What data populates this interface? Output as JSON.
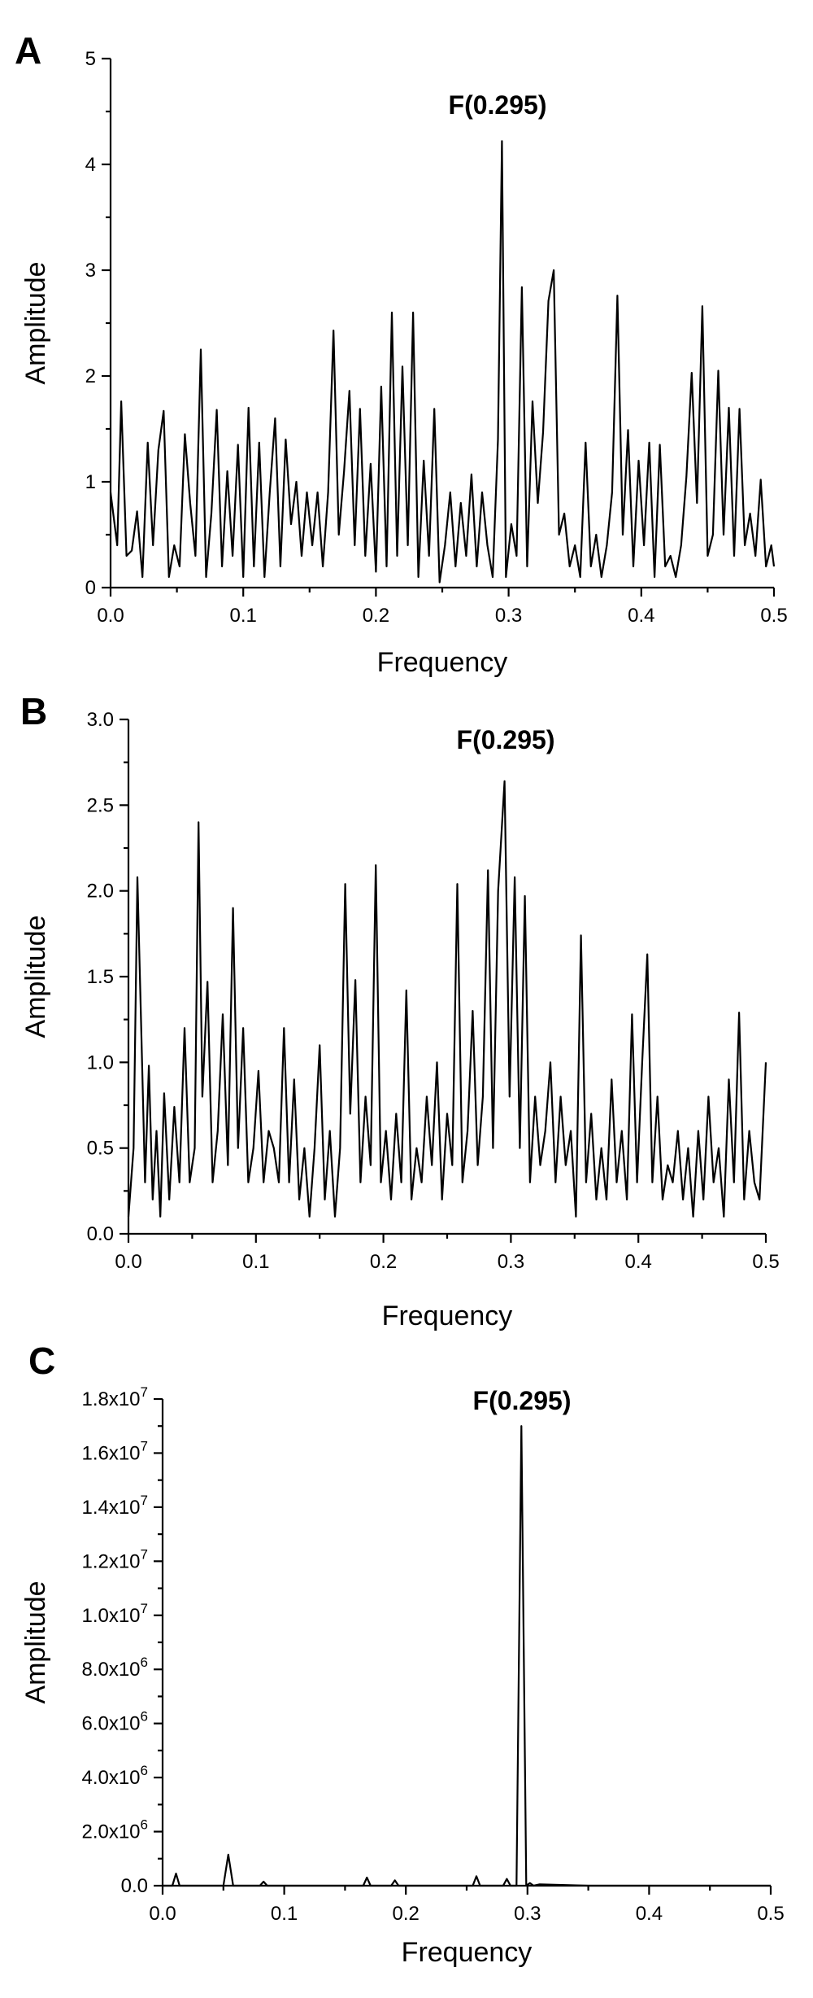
{
  "chart_data": [
    {
      "panel": "A",
      "type": "line",
      "annotation": "F(0.295)",
      "xlabel": "Frequency",
      "ylabel": "Amplitude",
      "xlim": [
        0,
        0.5
      ],
      "ylim": [
        0,
        5
      ],
      "xticks": [
        0.0,
        0.1,
        0.2,
        0.3,
        0.4,
        0.5
      ],
      "xtick_labels": [
        "0.0",
        "0.1",
        "0.2",
        "0.3",
        "0.4",
        "0.5"
      ],
      "yticks": [
        0,
        1,
        2,
        3,
        4,
        5
      ],
      "ytick_labels": [
        "0",
        "1",
        "2",
        "3",
        "4",
        "5"
      ],
      "grid": false,
      "x": [
        0.0,
        0.005,
        0.008,
        0.012,
        0.016,
        0.02,
        0.024,
        0.028,
        0.032,
        0.036,
        0.04,
        0.044,
        0.048,
        0.052,
        0.056,
        0.06,
        0.064,
        0.068,
        0.072,
        0.076,
        0.08,
        0.084,
        0.088,
        0.092,
        0.096,
        0.1,
        0.104,
        0.108,
        0.112,
        0.116,
        0.12,
        0.124,
        0.128,
        0.132,
        0.136,
        0.14,
        0.144,
        0.148,
        0.152,
        0.156,
        0.16,
        0.164,
        0.168,
        0.172,
        0.176,
        0.18,
        0.184,
        0.188,
        0.192,
        0.196,
        0.2,
        0.204,
        0.208,
        0.212,
        0.216,
        0.22,
        0.224,
        0.228,
        0.232,
        0.236,
        0.24,
        0.244,
        0.248,
        0.252,
        0.256,
        0.26,
        0.264,
        0.268,
        0.272,
        0.276,
        0.28,
        0.284,
        0.288,
        0.292,
        0.295,
        0.298,
        0.302,
        0.306,
        0.31,
        0.314,
        0.318,
        0.322,
        0.326,
        0.33,
        0.334,
        0.338,
        0.342,
        0.346,
        0.35,
        0.354,
        0.358,
        0.362,
        0.366,
        0.37,
        0.374,
        0.378,
        0.382,
        0.386,
        0.39,
        0.394,
        0.398,
        0.402,
        0.406,
        0.41,
        0.414,
        0.418,
        0.422,
        0.426,
        0.43,
        0.434,
        0.438,
        0.442,
        0.446,
        0.45,
        0.454,
        0.458,
        0.462,
        0.466,
        0.47,
        0.474,
        0.478,
        0.482,
        0.486,
        0.49,
        0.494,
        0.498,
        0.5
      ],
      "y": [
        0.9,
        0.4,
        1.76,
        0.3,
        0.35,
        0.72,
        0.1,
        1.37,
        0.4,
        1.3,
        1.67,
        0.1,
        0.4,
        0.2,
        1.45,
        0.8,
        0.3,
        2.25,
        0.1,
        0.7,
        1.68,
        0.2,
        1.1,
        0.3,
        1.35,
        0.1,
        1.7,
        0.2,
        1.37,
        0.1,
        0.9,
        1.6,
        0.2,
        1.4,
        0.6,
        1.0,
        0.3,
        0.9,
        0.4,
        0.9,
        0.2,
        0.9,
        2.43,
        0.5,
        1.1,
        1.86,
        0.4,
        1.69,
        0.3,
        1.17,
        0.15,
        1.9,
        0.2,
        2.6,
        0.3,
        2.09,
        0.4,
        2.6,
        0.1,
        1.2,
        0.3,
        1.69,
        0.05,
        0.4,
        0.9,
        0.2,
        0.8,
        0.3,
        1.07,
        0.2,
        0.9,
        0.4,
        0.1,
        1.4,
        4.22,
        0.1,
        0.6,
        0.3,
        2.84,
        0.2,
        1.76,
        0.8,
        1.47,
        2.71,
        3.0,
        0.5,
        0.7,
        0.2,
        0.4,
        0.1,
        1.37,
        0.2,
        0.5,
        0.1,
        0.4,
        0.9,
        2.76,
        0.5,
        1.49,
        0.2,
        1.2,
        0.4,
        1.37,
        0.1,
        1.35,
        0.2,
        0.3,
        0.1,
        0.4,
        1.05,
        2.03,
        0.8,
        2.66,
        0.3,
        0.5,
        2.05,
        0.5,
        1.7,
        0.3,
        1.69,
        0.4,
        0.7,
        0.3,
        1.02,
        0.2,
        0.4,
        0.2
      ]
    },
    {
      "panel": "B",
      "type": "line",
      "annotation": "F(0.295)",
      "xlabel": "Frequency",
      "ylabel": "Amplitude",
      "xlim": [
        0,
        0.5
      ],
      "ylim": [
        0,
        3
      ],
      "xticks": [
        0.0,
        0.1,
        0.2,
        0.3,
        0.4,
        0.5
      ],
      "xtick_labels": [
        "0.0",
        "0.1",
        "0.2",
        "0.3",
        "0.4",
        "0.5"
      ],
      "yticks": [
        0.0,
        0.5,
        1.0,
        1.5,
        2.0,
        2.5,
        3.0
      ],
      "ytick_labels": [
        "0.0",
        "0.5",
        "1.0",
        "1.5",
        "2.0",
        "2.5",
        "3.0"
      ],
      "grid": false,
      "x": [
        0.0,
        0.004,
        0.007,
        0.01,
        0.013,
        0.016,
        0.019,
        0.022,
        0.025,
        0.028,
        0.032,
        0.036,
        0.04,
        0.044,
        0.048,
        0.052,
        0.055,
        0.058,
        0.062,
        0.066,
        0.07,
        0.074,
        0.078,
        0.082,
        0.086,
        0.09,
        0.094,
        0.098,
        0.102,
        0.106,
        0.11,
        0.114,
        0.118,
        0.122,
        0.126,
        0.13,
        0.134,
        0.138,
        0.142,
        0.146,
        0.15,
        0.154,
        0.158,
        0.162,
        0.166,
        0.17,
        0.174,
        0.178,
        0.182,
        0.186,
        0.19,
        0.194,
        0.198,
        0.202,
        0.206,
        0.21,
        0.214,
        0.218,
        0.222,
        0.226,
        0.23,
        0.234,
        0.238,
        0.242,
        0.246,
        0.25,
        0.254,
        0.258,
        0.262,
        0.266,
        0.27,
        0.274,
        0.278,
        0.282,
        0.286,
        0.29,
        0.295,
        0.299,
        0.303,
        0.307,
        0.311,
        0.315,
        0.319,
        0.323,
        0.327,
        0.331,
        0.335,
        0.339,
        0.343,
        0.347,
        0.351,
        0.355,
        0.359,
        0.363,
        0.367,
        0.371,
        0.375,
        0.379,
        0.383,
        0.387,
        0.391,
        0.395,
        0.399,
        0.403,
        0.407,
        0.411,
        0.415,
        0.419,
        0.423,
        0.427,
        0.431,
        0.435,
        0.439,
        0.443,
        0.447,
        0.451,
        0.455,
        0.459,
        0.463,
        0.467,
        0.471,
        0.475,
        0.479,
        0.483,
        0.487,
        0.491,
        0.495,
        0.5
      ],
      "y": [
        0.1,
        0.5,
        2.08,
        1.2,
        0.3,
        0.98,
        0.2,
        0.6,
        0.1,
        0.82,
        0.2,
        0.74,
        0.3,
        1.2,
        0.3,
        0.5,
        2.4,
        0.8,
        1.47,
        0.3,
        0.6,
        1.28,
        0.4,
        1.9,
        0.5,
        1.2,
        0.3,
        0.5,
        0.95,
        0.3,
        0.6,
        0.5,
        0.3,
        1.2,
        0.3,
        0.9,
        0.2,
        0.5,
        0.1,
        0.5,
        1.1,
        0.2,
        0.6,
        0.1,
        0.5,
        2.04,
        0.7,
        1.48,
        0.3,
        0.8,
        0.4,
        2.15,
        0.3,
        0.6,
        0.2,
        0.7,
        0.3,
        1.42,
        0.2,
        0.5,
        0.3,
        0.8,
        0.4,
        1.0,
        0.2,
        0.7,
        0.4,
        2.04,
        0.3,
        0.6,
        1.3,
        0.4,
        0.8,
        2.12,
        0.5,
        2.0,
        2.64,
        0.8,
        2.08,
        0.5,
        1.97,
        0.3,
        0.8,
        0.4,
        0.6,
        1.0,
        0.3,
        0.8,
        0.4,
        0.6,
        0.1,
        1.74,
        0.3,
        0.7,
        0.2,
        0.5,
        0.2,
        0.9,
        0.3,
        0.6,
        0.2,
        1.28,
        0.3,
        1.0,
        1.63,
        0.3,
        0.8,
        0.2,
        0.4,
        0.3,
        0.6,
        0.2,
        0.5,
        0.1,
        0.6,
        0.2,
        0.8,
        0.3,
        0.5,
        0.1,
        0.9,
        0.3,
        1.29,
        0.2,
        0.6,
        0.3,
        0.2,
        1.0
      ]
    },
    {
      "panel": "C",
      "type": "line",
      "annotation": "F(0.295)",
      "xlabel": "Frequency",
      "ylabel": "Amplitude",
      "xlim": [
        0,
        0.5
      ],
      "ylim": [
        0,
        18000000
      ],
      "xticks": [
        0.0,
        0.1,
        0.2,
        0.3,
        0.4,
        0.5
      ],
      "xtick_labels": [
        "0.0",
        "0.1",
        "0.2",
        "0.3",
        "0.4",
        "0.5"
      ],
      "yticks": [
        0,
        2000000,
        4000000,
        6000000,
        8000000,
        10000000,
        12000000,
        14000000,
        16000000,
        18000000
      ],
      "ytick_labels": [
        {
          "base": "0.0",
          "exp": ""
        },
        {
          "base": "2.0x10",
          "exp": "6"
        },
        {
          "base": "4.0x10",
          "exp": "6"
        },
        {
          "base": "6.0x10",
          "exp": "6"
        },
        {
          "base": "8.0x10",
          "exp": "6"
        },
        {
          "base": "1.0x10",
          "exp": "7"
        },
        {
          "base": "1.2x10",
          "exp": "7"
        },
        {
          "base": "1.4x10",
          "exp": "7"
        },
        {
          "base": "1.6x10",
          "exp": "7"
        },
        {
          "base": "1.8x10",
          "exp": "7"
        }
      ],
      "grid": false,
      "x": [
        0.0,
        0.008,
        0.011,
        0.014,
        0.05,
        0.054,
        0.058,
        0.08,
        0.083,
        0.086,
        0.165,
        0.168,
        0.171,
        0.188,
        0.191,
        0.194,
        0.255,
        0.258,
        0.261,
        0.28,
        0.283,
        0.286,
        0.291,
        0.293,
        0.295,
        0.297,
        0.299,
        0.302,
        0.305,
        0.31,
        0.35,
        0.5
      ],
      "y": [
        0,
        0,
        450000,
        0,
        0,
        1150000,
        0,
        0,
        150000,
        0,
        0,
        300000,
        0,
        0,
        200000,
        0,
        0,
        350000,
        0,
        0,
        250000,
        0,
        0,
        8500000,
        17000000,
        8500000,
        0,
        100000,
        0,
        50000,
        0,
        0
      ]
    }
  ]
}
